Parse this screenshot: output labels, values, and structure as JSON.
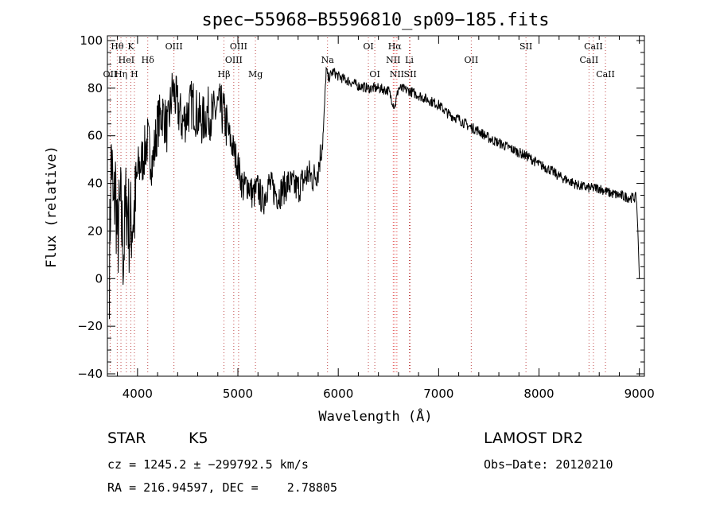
{
  "chart_data": {
    "type": "line",
    "title": "spec−55968−B5596810_sp09−185.fits",
    "xlabel": "Wavelength (Å)",
    "ylabel": "Flux (relative)",
    "xlim": [
      3700,
      9050
    ],
    "ylim": [
      -41,
      102
    ],
    "xticks": [
      4000,
      5000,
      6000,
      7000,
      8000,
      9000
    ],
    "yticks": [
      -40,
      -20,
      0,
      20,
      40,
      60,
      80,
      100
    ],
    "xtick_labels": [
      "4000",
      "5000",
      "6000",
      "7000",
      "8000",
      "9000"
    ],
    "ytick_labels": [
      "−40",
      "−20",
      "0",
      "20",
      "40",
      "60",
      "80",
      "100"
    ],
    "series": [
      {
        "color": "#000000",
        "x": [
          3720,
          3740,
          3760,
          3780,
          3800,
          3830,
          3860,
          3890,
          3920,
          3950,
          3980,
          4000,
          4050,
          4100,
          4150,
          4200,
          4250,
          4300,
          4350,
          4400,
          4450,
          4500,
          4550,
          4600,
          4650,
          4700,
          4750,
          4800,
          4850,
          4900,
          4950,
          5000,
          5050,
          5100,
          5150,
          5200,
          5250,
          5300,
          5400,
          5500,
          5600,
          5700,
          5750,
          5800,
          5850,
          5880,
          5900,
          5950,
          6000,
          6100,
          6200,
          6300,
          6400,
          6500,
          6562,
          6600,
          6700,
          6800,
          6900,
          7000,
          7100,
          7200,
          7300,
          7400,
          7500,
          7600,
          7700,
          7800,
          7900,
          8000,
          8100,
          8200,
          8300,
          8400,
          8500,
          8600,
          8700,
          8800,
          8900,
          8970,
          8985,
          9000
        ],
        "y": [
          5,
          55,
          25,
          40,
          15,
          30,
          10,
          35,
          20,
          25,
          30,
          45,
          50,
          58,
          48,
          65,
          70,
          62,
          80,
          72,
          65,
          70,
          74,
          68,
          66,
          70,
          68,
          72,
          70,
          62,
          55,
          48,
          38,
          40,
          35,
          38,
          32,
          40,
          35,
          40,
          38,
          44,
          42,
          46,
          60,
          88,
          84,
          87,
          85,
          83,
          81,
          80,
          80,
          79,
          72,
          80,
          79,
          77,
          75,
          73,
          69,
          67,
          64,
          62,
          59,
          57,
          55,
          53,
          51,
          48,
          46,
          43,
          41,
          39,
          38,
          38,
          36,
          35,
          34,
          34,
          20,
          0
        ]
      }
    ],
    "line_labels": [
      {
        "text": "Hθ",
        "wavelength": 3798,
        "row": 1
      },
      {
        "text": "K",
        "wavelength": 3934,
        "row": 1
      },
      {
        "text": "HeI",
        "wavelength": 3889,
        "row": 2
      },
      {
        "text": "Hδ",
        "wavelength": 4102,
        "row": 2
      },
      {
        "text": "OII",
        "wavelength": 3727,
        "row": 3
      },
      {
        "text": "Hη",
        "wavelength": 3835,
        "row": 3
      },
      {
        "text": "H",
        "wavelength": 3969,
        "row": 3
      },
      {
        "text": "OIII",
        "wavelength": 4363,
        "row": 1
      },
      {
        "text": "OIII",
        "wavelength": 5007,
        "row": 1
      },
      {
        "text": "OIII",
        "wavelength": 4959,
        "row": 2
      },
      {
        "text": "Hβ",
        "wavelength": 4861,
        "row": 3
      },
      {
        "text": "Mg",
        "wavelength": 5175,
        "row": 3
      },
      {
        "text": "Na",
        "wavelength": 5893,
        "row": 2
      },
      {
        "text": "OI",
        "wavelength": 6300,
        "row": 1
      },
      {
        "text": "OI",
        "wavelength": 6364,
        "row": 3
      },
      {
        "text": "Hα",
        "wavelength": 6563,
        "row": 1
      },
      {
        "text": "NII",
        "wavelength": 6548,
        "row": 2
      },
      {
        "text": "Li",
        "wavelength": 6708,
        "row": 2
      },
      {
        "text": "NII",
        "wavelength": 6584,
        "row": 3
      },
      {
        "text": "SII",
        "wavelength": 6717,
        "row": 3
      },
      {
        "text": "OII",
        "wavelength": 7325,
        "row": 2
      },
      {
        "text": "SII",
        "wavelength": 7870,
        "row": 1
      },
      {
        "text": "CaII",
        "wavelength": 8542,
        "row": 1
      },
      {
        "text": "CaII",
        "wavelength": 8498,
        "row": 2
      },
      {
        "text": "CaII",
        "wavelength": 8662,
        "row": 3
      }
    ],
    "grid": false,
    "legend": "none"
  },
  "info": {
    "class": "STAR",
    "subclass": "K5",
    "survey": "LAMOST DR2",
    "cz": "cz = 1245.2 ± −299792.5 km/s",
    "obs_date": "Obs−Date: 20120210",
    "coords": "RA = 216.94597, DEC =    2.78805"
  }
}
